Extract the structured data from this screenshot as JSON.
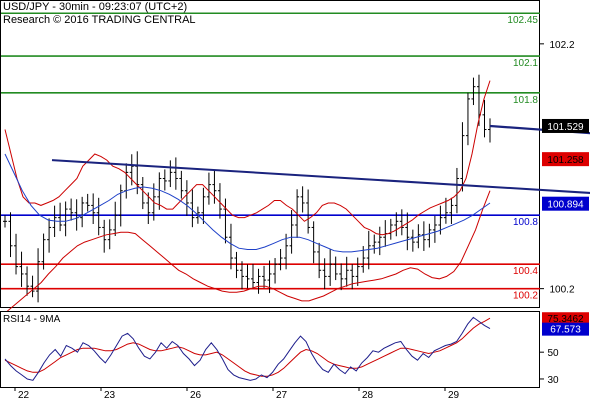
{
  "header": {
    "line1": "USD/JPY - 30min - 09:23:07 (UTC+2)",
    "line2": "Research © 2016 TRADING CENTRAL"
  },
  "chart_data": [
    {
      "type": "line",
      "panel": "price",
      "ylim": [
        100.05,
        102.55
      ],
      "x_labels": [
        "22",
        "23",
        "26",
        "27",
        "28",
        "29"
      ],
      "y_ticks": [
        "102.2",
        "100.2"
      ],
      "levels": [
        {
          "value": 102.45,
          "label": "102.45",
          "color": "#228b22"
        },
        {
          "value": 102.1,
          "label": "102.1",
          "color": "#228b22"
        },
        {
          "value": 101.8,
          "label": "101.8",
          "color": "#228b22"
        },
        {
          "value": 100.8,
          "label": "100.8",
          "color": "#0000cd"
        },
        {
          "value": 100.4,
          "label": "100.4",
          "color": "#dd0000"
        },
        {
          "value": 100.2,
          "label": "100.2",
          "color": "#dd0000"
        }
      ],
      "badges": [
        {
          "value": 101.529,
          "label": "101.529",
          "bg": "#000000",
          "fg": "#ffffff"
        },
        {
          "value": 101.258,
          "label": "101.258",
          "bg": "#dd0000",
          "fg": "#000000"
        },
        {
          "value": 100.894,
          "label": "100.894",
          "bg": "#0000cd",
          "fg": "#ffffff"
        }
      ],
      "trendline": {
        "from": [
          0.5,
          101.25
        ],
        "to": [
          10.3,
          100.83
        ],
        "color": "#1a237e"
      },
      "arrow": {
        "points": [
          [
            11.1,
            101.25
          ],
          [
            11.65,
            102.05
          ]
        ],
        "color": "#1a237e"
      },
      "close_series": [
        100.75,
        100.55,
        100.38,
        100.32,
        100.22,
        100.18,
        100.42,
        100.6,
        100.7,
        100.78,
        100.72,
        100.85,
        100.82,
        100.78,
        100.9,
        100.88,
        100.82,
        100.7,
        100.6,
        100.68,
        100.8,
        101.0,
        101.15,
        101.2,
        101.05,
        100.9,
        100.82,
        100.95,
        101.1,
        101.08,
        101.15,
        101.1,
        101.0,
        100.9,
        100.78,
        100.82,
        100.95,
        101.05,
        101.0,
        100.85,
        100.62,
        100.45,
        100.35,
        100.3,
        100.28,
        100.25,
        100.3,
        100.27,
        100.32,
        100.4,
        100.45,
        100.55,
        100.72,
        100.95,
        100.9,
        100.7,
        100.5,
        100.35,
        100.3,
        100.4,
        100.32,
        100.28,
        100.35,
        100.3,
        100.38,
        100.45,
        100.55,
        100.58,
        100.62,
        100.65,
        100.72,
        100.75,
        100.7,
        100.62,
        100.58,
        100.64,
        100.6,
        100.68,
        100.72,
        100.78,
        100.82,
        100.88,
        101.1,
        101.45,
        101.75,
        101.85,
        101.62,
        101.5,
        101.529
      ],
      "bollinger_upper": [
        101.5,
        101.3,
        101.1,
        100.95,
        100.9,
        100.9,
        100.88,
        100.9,
        100.92,
        100.95,
        101.0,
        101.05,
        101.1,
        101.2,
        101.25,
        101.3,
        101.28,
        101.25,
        101.2,
        101.18,
        101.15,
        101.1,
        101.05,
        101.0,
        100.95,
        100.9,
        100.88,
        100.85,
        100.85,
        100.9,
        100.95,
        101.0,
        101.05,
        101.05,
        101.0,
        100.95,
        100.9,
        100.85,
        100.8,
        100.78,
        100.78,
        100.8,
        100.82,
        100.85,
        100.88,
        100.92,
        100.92,
        100.88,
        100.85,
        100.8,
        100.75,
        100.78,
        100.82,
        100.88,
        100.9,
        100.9,
        100.88,
        100.85,
        100.8,
        100.75,
        100.7,
        100.68,
        100.65,
        100.64,
        100.65,
        100.67,
        100.7,
        100.73,
        100.76,
        100.8,
        100.83,
        100.86,
        100.88,
        100.9,
        100.92,
        100.95,
        101.0,
        101.1,
        101.3,
        101.55,
        101.75,
        101.9
      ],
      "bollinger_lower": [
        100.0,
        100.05,
        100.1,
        100.15,
        100.2,
        100.25,
        100.32,
        100.38,
        100.45,
        100.5,
        100.55,
        100.58,
        100.6,
        100.62,
        100.64,
        100.65,
        100.66,
        100.66,
        100.65,
        100.6,
        100.55,
        100.5,
        100.45,
        100.4,
        100.35,
        100.32,
        100.28,
        100.25,
        100.22,
        100.2,
        100.18,
        100.17,
        100.17,
        100.18,
        100.2,
        100.22,
        100.22,
        100.2,
        100.17,
        100.14,
        100.12,
        100.1,
        100.1,
        100.12,
        100.14,
        100.17,
        100.2,
        100.22,
        100.24,
        100.25,
        100.26,
        100.27,
        100.28,
        100.3,
        100.32,
        100.35,
        100.37,
        100.36,
        100.32,
        100.29,
        100.28,
        100.3,
        100.34,
        100.42,
        100.55,
        100.68,
        100.85,
        101.0
      ],
      "moving_average": [
        101.3,
        101.15,
        101.0,
        100.88,
        100.8,
        100.76,
        100.75,
        100.75,
        100.77,
        100.8,
        100.84,
        100.88,
        100.92,
        100.97,
        101.0,
        101.02,
        101.03,
        101.02,
        101.0,
        100.97,
        100.93,
        100.88,
        100.82,
        100.75,
        100.68,
        100.62,
        100.57,
        100.53,
        100.52,
        100.52,
        100.54,
        100.57,
        100.6,
        100.62,
        100.62,
        100.6,
        100.57,
        100.54,
        100.51,
        100.5,
        100.5,
        100.51,
        100.52,
        100.53,
        100.55,
        100.57,
        100.59,
        100.61,
        100.63,
        100.65,
        100.67,
        100.7,
        100.73,
        100.76,
        100.8,
        100.85,
        100.9
      ]
    },
    {
      "type": "line",
      "panel": "indicator",
      "title": "RSI14 - 9MA",
      "ylim": [
        24,
        80
      ],
      "y_ticks": [
        "50",
        "30"
      ],
      "badges": [
        {
          "value": 75.3462,
          "label": "75.3462",
          "bg": "#dd0000",
          "fg": "#000000"
        },
        {
          "value": 67.573,
          "label": "67.573",
          "bg": "#0000cd",
          "fg": "#ffffff"
        }
      ],
      "rsi": [
        45,
        40,
        36,
        33,
        30,
        29,
        35,
        42,
        48,
        52,
        47,
        55,
        53,
        50,
        57,
        55,
        51,
        46,
        42,
        48,
        55,
        62,
        64,
        60,
        53,
        47,
        45,
        50,
        57,
        53,
        58,
        55,
        49,
        45,
        40,
        44,
        52,
        57,
        52,
        45,
        37,
        33,
        31,
        30,
        29,
        30,
        33,
        31,
        35,
        41,
        45,
        51,
        57,
        62,
        58,
        49,
        42,
        37,
        35,
        41,
        37,
        34,
        39,
        36,
        42,
        46,
        51,
        50,
        53,
        55,
        57,
        58,
        52,
        47,
        44,
        49,
        46,
        51,
        53,
        55,
        56,
        58,
        64,
        71,
        76,
        73,
        70,
        67.573
      ],
      "rsi_ma": [
        44,
        42,
        40,
        38,
        36,
        35,
        35,
        37,
        40,
        43,
        46,
        48,
        50,
        52,
        53,
        53,
        53,
        52,
        51,
        51,
        52,
        54,
        56,
        57,
        56,
        54,
        52,
        51,
        51,
        52,
        53,
        54,
        53,
        51,
        49,
        48,
        48,
        49,
        50,
        48,
        45,
        42,
        39,
        36,
        34,
        33,
        32,
        32,
        33,
        35,
        38,
        42,
        46,
        50,
        52,
        51,
        49,
        46,
        43,
        41,
        40,
        39,
        38,
        38,
        39,
        41,
        43,
        45,
        47,
        49,
        51,
        53,
        53,
        52,
        51,
        50,
        49,
        50,
        51,
        53,
        55,
        57,
        60,
        64,
        68,
        71,
        73,
        75.3462
      ]
    }
  ]
}
